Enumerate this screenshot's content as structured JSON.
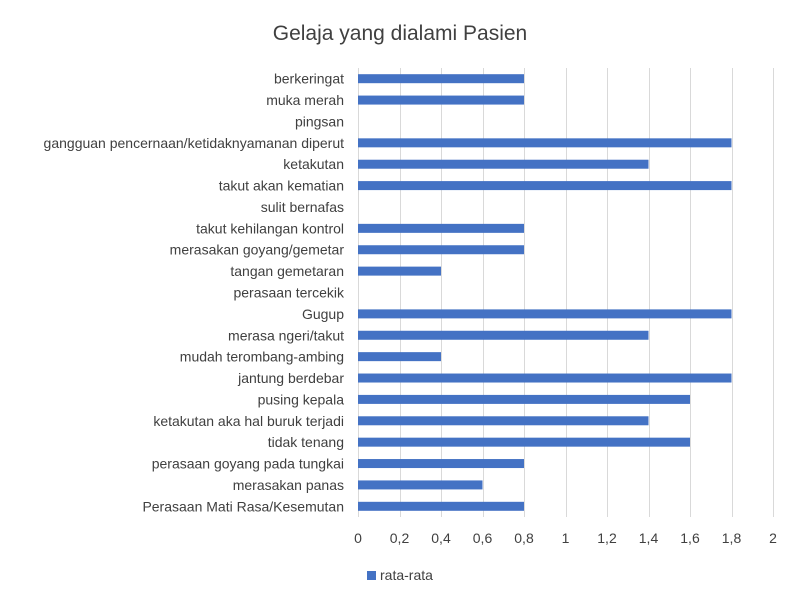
{
  "chart_data": {
    "type": "bar",
    "orientation": "horizontal",
    "title": "Gelaja yang dialami Pasien",
    "categories": [
      "berkeringat",
      "muka merah",
      "pingsan",
      "gangguan pencernaan/ketidaknyamanan diperut",
      "ketakutan",
      "takut akan kematian",
      "sulit bernafas",
      "takut kehilangan kontrol",
      "merasakan goyang/gemetar",
      "tangan gemetaran",
      "perasaan tercekik",
      "Gugup",
      "merasa ngeri/takut",
      "mudah terombang-ambing",
      "jantung berdebar",
      "pusing kepala",
      "ketakutan aka hal buruk terjadi",
      "tidak tenang",
      "perasaan goyang pada tungkai",
      "merasakan panas",
      "Perasaan Mati Rasa/Kesemutan"
    ],
    "series": [
      {
        "name": "rata-rata",
        "color": "#4472c4",
        "values": [
          0.8,
          0.8,
          0,
          1.8,
          1.4,
          1.8,
          0,
          0.8,
          0.8,
          0.4,
          0,
          1.8,
          1.4,
          0.4,
          1.8,
          1.6,
          1.4,
          1.6,
          0.8,
          0.6,
          0.8
        ]
      }
    ],
    "xlim": [
      0,
      2
    ],
    "ticks": [
      "0",
      "0,2",
      "0,4",
      "0,6",
      "0,8",
      "1",
      "1,2",
      "1,4",
      "1,6",
      "1,8",
      "2"
    ],
    "tick_values": [
      0,
      0.2,
      0.4,
      0.6,
      0.8,
      1.0,
      1.2,
      1.4,
      1.6,
      1.8,
      2.0
    ],
    "grid": "vertical",
    "legend": "bottom-left",
    "gridline_color": "#d9d9d9"
  }
}
